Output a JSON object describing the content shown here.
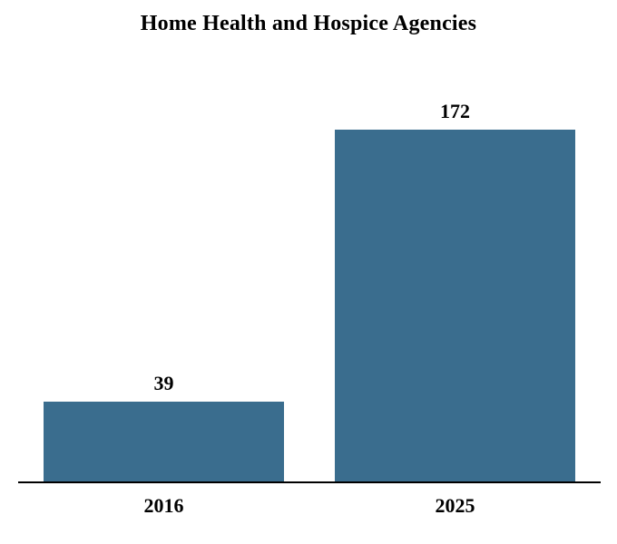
{
  "chart_data": {
    "type": "bar",
    "title": "Home Health and Hospice Agencies",
    "categories": [
      "2016",
      "2025"
    ],
    "values": [
      39,
      172
    ],
    "value_labels": [
      "39",
      "172"
    ],
    "xlabel": "",
    "ylabel": "",
    "ylim": [
      0,
      195
    ],
    "bar_color": "#3A6D8E",
    "axis_color": "#000000",
    "text_color": "#000000",
    "background_color": "#FFFFFF",
    "grid": false,
    "legend": false,
    "y_axis_visible": false,
    "data_labels_position": "above-bar"
  }
}
